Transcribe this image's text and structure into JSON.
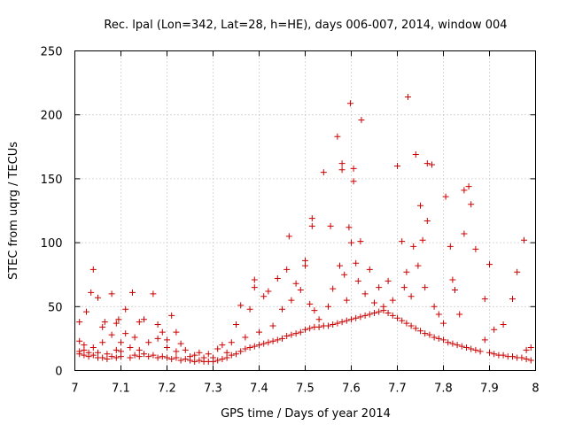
{
  "chart_data": {
    "type": "scatter",
    "title": "Rec. lpal (Lon=342, Lat=28, h=HE), days 006-007, 2014, window 004",
    "xlabel": "GPS time / Days of year 2014",
    "ylabel": "STEC from uqrg / TECUs",
    "xlim": [
      7,
      8
    ],
    "ylim": [
      0,
      250
    ],
    "xticks": [
      7,
      7.1,
      7.2,
      7.3,
      7.4,
      7.5,
      7.6,
      7.7,
      7.8,
      7.9,
      8
    ],
    "xtick_labels": [
      "7",
      "7.1",
      "7.2",
      "7.3",
      "7.4",
      "7.5",
      "7.6",
      "7.7",
      "7.8",
      "7.9",
      "8"
    ],
    "yticks": [
      0,
      50,
      100,
      150,
      200,
      250
    ],
    "ytick_labels": [
      "0",
      "50",
      "100",
      "150",
      "200",
      "250"
    ],
    "grid": true,
    "marker": "plus",
    "marker_color": "#cc0000",
    "series": [
      {
        "name": "STEC",
        "points": [
          [
            7.01,
            13
          ],
          [
            7.01,
            15
          ],
          [
            7.01,
            23
          ],
          [
            7.01,
            38
          ],
          [
            7.02,
            12
          ],
          [
            7.02,
            16
          ],
          [
            7.02,
            20
          ],
          [
            7.025,
            46
          ],
          [
            7.03,
            11
          ],
          [
            7.03,
            14
          ],
          [
            7.035,
            61
          ],
          [
            7.04,
            79
          ],
          [
            7.04,
            12
          ],
          [
            7.04,
            18
          ],
          [
            7.05,
            10
          ],
          [
            7.05,
            14
          ],
          [
            7.05,
            57
          ],
          [
            7.06,
            10
          ],
          [
            7.06,
            22
          ],
          [
            7.06,
            34
          ],
          [
            7.065,
            38
          ],
          [
            7.07,
            9
          ],
          [
            7.07,
            13
          ],
          [
            7.08,
            11
          ],
          [
            7.08,
            28
          ],
          [
            7.08,
            60
          ],
          [
            7.09,
            10
          ],
          [
            7.09,
            16
          ],
          [
            7.09,
            37
          ],
          [
            7.095,
            40
          ],
          [
            7.1,
            11
          ],
          [
            7.1,
            22
          ],
          [
            7.1,
            15
          ],
          [
            7.11,
            29
          ],
          [
            7.11,
            48
          ],
          [
            7.12,
            10
          ],
          [
            7.12,
            18
          ],
          [
            7.125,
            61
          ],
          [
            7.13,
            12
          ],
          [
            7.13,
            26
          ],
          [
            7.14,
            11
          ],
          [
            7.14,
            16
          ],
          [
            7.14,
            38
          ],
          [
            7.15,
            13
          ],
          [
            7.15,
            40
          ],
          [
            7.16,
            11
          ],
          [
            7.16,
            22
          ],
          [
            7.17,
            12
          ],
          [
            7.17,
            60
          ],
          [
            7.18,
            10
          ],
          [
            7.18,
            25
          ],
          [
            7.18,
            36
          ],
          [
            7.19,
            11
          ],
          [
            7.19,
            30
          ],
          [
            7.2,
            10
          ],
          [
            7.2,
            18
          ],
          [
            7.2,
            24
          ],
          [
            7.21,
            9
          ],
          [
            7.21,
            43
          ],
          [
            7.22,
            10
          ],
          [
            7.22,
            15
          ],
          [
            7.22,
            30
          ],
          [
            7.23,
            8
          ],
          [
            7.23,
            21
          ],
          [
            7.24,
            9
          ],
          [
            7.24,
            16
          ],
          [
            7.25,
            8
          ],
          [
            7.25,
            11
          ],
          [
            7.26,
            7
          ],
          [
            7.26,
            12
          ],
          [
            7.27,
            8
          ],
          [
            7.27,
            14
          ],
          [
            7.28,
            7
          ],
          [
            7.28,
            10
          ],
          [
            7.29,
            7
          ],
          [
            7.29,
            13
          ],
          [
            7.3,
            7
          ],
          [
            7.3,
            10
          ],
          [
            7.31,
            8
          ],
          [
            7.31,
            17
          ],
          [
            7.32,
            9
          ],
          [
            7.32,
            20
          ],
          [
            7.33,
            10
          ],
          [
            7.33,
            14
          ],
          [
            7.34,
            12
          ],
          [
            7.34,
            22
          ],
          [
            7.35,
            13
          ],
          [
            7.35,
            36
          ],
          [
            7.36,
            15
          ],
          [
            7.36,
            51
          ],
          [
            7.37,
            17
          ],
          [
            7.37,
            26
          ],
          [
            7.38,
            18
          ],
          [
            7.38,
            48
          ],
          [
            7.39,
            19
          ],
          [
            7.39,
            71
          ],
          [
            7.39,
            65
          ],
          [
            7.4,
            20
          ],
          [
            7.4,
            30
          ],
          [
            7.41,
            21
          ],
          [
            7.41,
            58
          ],
          [
            7.42,
            22
          ],
          [
            7.42,
            62
          ],
          [
            7.43,
            23
          ],
          [
            7.43,
            35
          ],
          [
            7.44,
            24
          ],
          [
            7.44,
            72
          ],
          [
            7.45,
            25
          ],
          [
            7.45,
            48
          ],
          [
            7.46,
            27
          ],
          [
            7.46,
            79
          ],
          [
            7.465,
            105
          ],
          [
            7.47,
            28
          ],
          [
            7.47,
            55
          ],
          [
            7.48,
            29
          ],
          [
            7.48,
            68
          ],
          [
            7.49,
            30
          ],
          [
            7.49,
            63
          ],
          [
            7.5,
            32
          ],
          [
            7.5,
            82
          ],
          [
            7.5,
            86
          ],
          [
            7.51,
            33
          ],
          [
            7.51,
            52
          ],
          [
            7.515,
            113
          ],
          [
            7.515,
            119
          ],
          [
            7.52,
            34
          ],
          [
            7.52,
            47
          ],
          [
            7.53,
            34
          ],
          [
            7.53,
            40
          ],
          [
            7.54,
            35
          ],
          [
            7.54,
            155
          ],
          [
            7.55,
            35
          ],
          [
            7.55,
            50
          ],
          [
            7.555,
            113
          ],
          [
            7.56,
            36
          ],
          [
            7.56,
            64
          ],
          [
            7.57,
            37
          ],
          [
            7.57,
            183
          ],
          [
            7.575,
            82
          ],
          [
            7.58,
            38
          ],
          [
            7.58,
            157
          ],
          [
            7.58,
            162
          ],
          [
            7.585,
            75
          ],
          [
            7.59,
            39
          ],
          [
            7.59,
            55
          ],
          [
            7.595,
            112
          ],
          [
            7.598,
            209
          ],
          [
            7.6,
            40
          ],
          [
            7.6,
            100
          ],
          [
            7.605,
            158
          ],
          [
            7.605,
            148
          ],
          [
            7.61,
            41
          ],
          [
            7.61,
            84
          ],
          [
            7.615,
            70
          ],
          [
            7.62,
            42
          ],
          [
            7.62,
            101
          ],
          [
            7.622,
            196
          ],
          [
            7.63,
            43
          ],
          [
            7.63,
            60
          ],
          [
            7.64,
            44
          ],
          [
            7.64,
            79
          ],
          [
            7.65,
            45
          ],
          [
            7.65,
            53
          ],
          [
            7.66,
            46
          ],
          [
            7.66,
            65
          ],
          [
            7.67,
            47
          ],
          [
            7.67,
            50
          ],
          [
            7.68,
            45
          ],
          [
            7.68,
            70
          ],
          [
            7.69,
            43
          ],
          [
            7.69,
            55
          ],
          [
            7.7,
            41
          ],
          [
            7.7,
            160
          ],
          [
            7.71,
            39
          ],
          [
            7.71,
            101
          ],
          [
            7.715,
            65
          ],
          [
            7.72,
            37
          ],
          [
            7.72,
            77
          ],
          [
            7.723,
            214
          ],
          [
            7.73,
            35
          ],
          [
            7.73,
            58
          ],
          [
            7.735,
            97
          ],
          [
            7.74,
            33
          ],
          [
            7.74,
            169
          ],
          [
            7.745,
            82
          ],
          [
            7.75,
            31
          ],
          [
            7.75,
            129
          ],
          [
            7.755,
            102
          ],
          [
            7.76,
            29
          ],
          [
            7.76,
            65
          ],
          [
            7.765,
            117
          ],
          [
            7.765,
            162
          ],
          [
            7.77,
            28
          ],
          [
            7.775,
            161
          ],
          [
            7.78,
            26
          ],
          [
            7.78,
            50
          ],
          [
            7.79,
            25
          ],
          [
            7.79,
            44
          ],
          [
            7.8,
            24
          ],
          [
            7.8,
            37
          ],
          [
            7.805,
            136
          ],
          [
            7.81,
            22
          ],
          [
            7.815,
            97
          ],
          [
            7.82,
            21
          ],
          [
            7.82,
            71
          ],
          [
            7.825,
            63
          ],
          [
            7.83,
            20
          ],
          [
            7.835,
            44
          ],
          [
            7.84,
            19
          ],
          [
            7.845,
            107
          ],
          [
            7.845,
            141
          ],
          [
            7.85,
            18
          ],
          [
            7.855,
            144
          ],
          [
            7.86,
            17
          ],
          [
            7.86,
            130
          ],
          [
            7.87,
            16
          ],
          [
            7.87,
            95
          ],
          [
            7.88,
            15
          ],
          [
            7.89,
            56
          ],
          [
            7.89,
            24
          ],
          [
            7.9,
            14
          ],
          [
            7.9,
            83
          ],
          [
            7.91,
            13
          ],
          [
            7.91,
            32
          ],
          [
            7.92,
            12
          ],
          [
            7.93,
            12
          ],
          [
            7.93,
            36
          ],
          [
            7.94,
            11
          ],
          [
            7.95,
            11
          ],
          [
            7.95,
            56
          ],
          [
            7.96,
            10
          ],
          [
            7.96,
            77
          ],
          [
            7.97,
            10
          ],
          [
            7.975,
            102
          ],
          [
            7.98,
            9
          ],
          [
            7.98,
            16
          ],
          [
            7.99,
            8
          ],
          [
            7.99,
            18
          ]
        ]
      }
    ]
  }
}
